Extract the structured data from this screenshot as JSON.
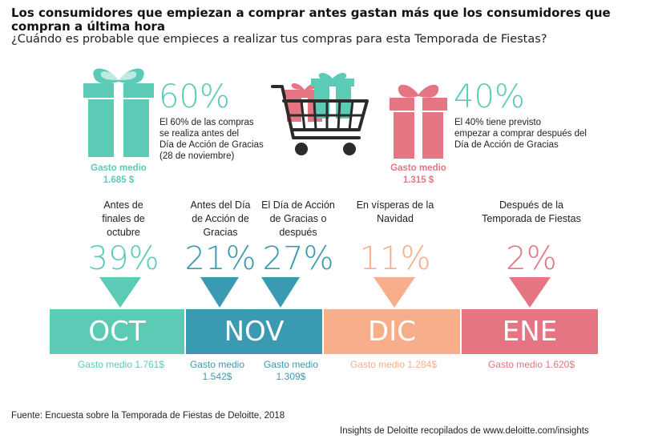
{
  "header": {
    "title": "Los consumidores que empiezan a comprar antes gastan más que los consumidores que compran a última hora",
    "subtitle": "¿Cuándo es probable que empieces a realizar tus compras para esta Temporada de Fiestas?"
  },
  "before": {
    "pct": "60%",
    "desc": [
      "El 60% de las compras",
      "se realiza antes del",
      "Día de Acción de Gracias",
      "(28 de noviembre)"
    ],
    "spend_label": "Gasto medio",
    "spend_value": "1.685 $",
    "icon": "gift-box-icon",
    "color": "#5ccbb6"
  },
  "after": {
    "pct": "40%",
    "desc": [
      "El 40% tiene previsto",
      "empezar a comprar después del",
      "Día de Acción de Gracias"
    ],
    "spend_label": "Gasto medio",
    "spend_value": "1.315 $",
    "icon": "gift-box-icon",
    "color": "#e57583"
  },
  "cart_icon": "shopping-cart-icon",
  "periods": [
    {
      "label": [
        "Antes de",
        "finales de",
        "octubre"
      ],
      "pct": "39%",
      "color": "#5ccbb6",
      "spend": [
        "Gasto medio 1.761$"
      ]
    },
    {
      "label": [
        "Antes del Día",
        "de Acción de",
        "Gracias"
      ],
      "pct": "21%",
      "color": "#3a9ab1",
      "spend": [
        "Gasto medio",
        "1.542$"
      ]
    },
    {
      "label": [
        "El Día de Acción",
        "de Gracias o",
        "después"
      ],
      "pct": "27%",
      "color": "#3a9ab1",
      "spend": [
        "Gasto medio",
        "1.309$"
      ]
    },
    {
      "label": [
        "En vísperas de la",
        "Navidad"
      ],
      "pct": "11%",
      "color": "#f8ae8a",
      "spend": [
        "Gasto medio 1.284$"
      ]
    },
    {
      "label": [
        "Después de la",
        "Temporada de Fiestas"
      ],
      "pct": "2%",
      "color": "#e57583",
      "spend": [
        "Gasto medio 1.620$"
      ]
    }
  ],
  "months": [
    {
      "label": "OCT",
      "color": "#5ccbb6"
    },
    {
      "label": "NOV",
      "color": "#3a9ab1"
    },
    {
      "label": "DIC",
      "color": "#f8ae8a"
    },
    {
      "label": "ENE",
      "color": "#e57583"
    }
  ],
  "footer": {
    "source": "Fuente: Encuesta sobre la Temporada de Fiestas de Deloitte, 2018",
    "credit": "Insights de Deloitte recopilados de www.deloitte.com/insights"
  }
}
